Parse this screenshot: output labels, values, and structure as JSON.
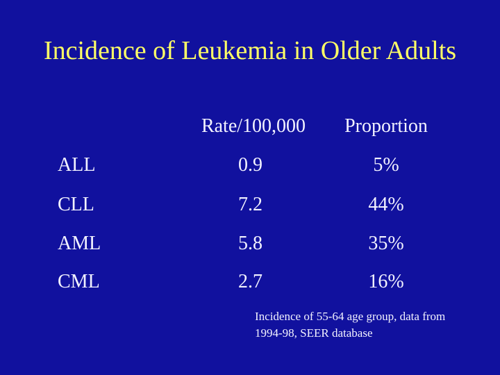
{
  "title": "Incidence of Leukemia in Older Adults",
  "table": {
    "headers": [
      "Rate/100,000",
      "Proportion"
    ],
    "rows": [
      [
        "ALL",
        "0.9",
        "5%"
      ],
      [
        "CLL",
        "7.2",
        "44%"
      ],
      [
        "AML",
        "5.8",
        "35%"
      ],
      [
        "CML",
        "2.7",
        "16%"
      ]
    ]
  },
  "footnote": "Incidence of 55-64 age group, data from 1994-98, SEER database"
}
